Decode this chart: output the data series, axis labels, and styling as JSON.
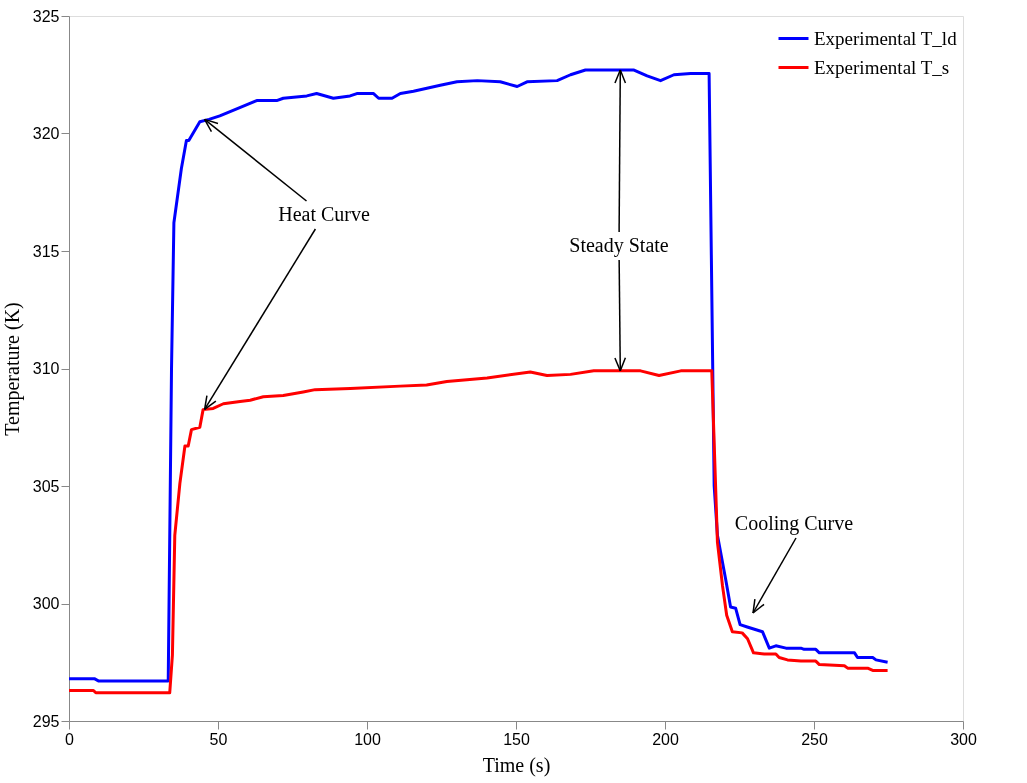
{
  "chart_data": {
    "type": "line",
    "xlabel": "Time (s)",
    "ylabel": "Temperature (K)",
    "xlim": [
      0,
      300
    ],
    "ylim": [
      295,
      325
    ],
    "xticks": [
      0,
      50,
      100,
      150,
      200,
      250,
      300
    ],
    "yticks": [
      295,
      300,
      305,
      310,
      315,
      320,
      325
    ],
    "grid": false,
    "legend": "top right",
    "marker": "none",
    "line_style": "solid",
    "series": [
      {
        "name": "Experimental T_ld",
        "color": "#0000ff",
        "x": [
          0,
          8.5,
          10,
          33.3,
          34.4,
          35.2,
          37.7,
          39.4,
          40.2,
          43.9,
          47,
          50.6,
          57.3,
          63,
          69.7,
          71.9,
          79.8,
          83.1,
          88.7,
          94.3,
          96.6,
          102.2,
          103.9,
          108.4,
          111.2,
          115.6,
          124.6,
          130.2,
          137,
          144.7,
          150.4,
          153.7,
          163.8,
          168.3,
          173.3,
          189.6,
          194,
          198.5,
          203,
          208.6,
          214.8,
          216.5,
          217.6,
          220.4,
          222,
          223.7,
          225.2,
          227.6,
          232.7,
          235,
          237.2,
          240.6,
          245.6,
          246.7,
          250.6,
          251.8,
          255.2,
          263.6,
          264.6,
          269.7,
          270.8,
          274.7
        ],
        "values": [
          296.8,
          296.8,
          296.7,
          296.7,
          310,
          316.2,
          318.5,
          319.7,
          319.7,
          320.5,
          320.6,
          320.75,
          321.1,
          321.4,
          321.4,
          321.5,
          321.6,
          321.7,
          321.5,
          321.6,
          321.7,
          321.7,
          321.5,
          321.5,
          321.7,
          321.8,
          322.05,
          322.2,
          322.25,
          322.2,
          322.0,
          322.2,
          322.25,
          322.5,
          322.7,
          322.7,
          322.45,
          322.25,
          322.5,
          322.55,
          322.55,
          305.0,
          302.9,
          301.0,
          299.85,
          299.8,
          299.1,
          299.0,
          298.8,
          298.1,
          298.2,
          298.1,
          298.1,
          298.05,
          298.05,
          297.9,
          297.9,
          297.9,
          297.7,
          297.7,
          297.6,
          297.5
        ]
      },
      {
        "name": "Experimental T_s",
        "color": "#ff0000",
        "x": [
          0,
          8.2,
          9,
          33.8,
          34.7,
          35.5,
          37.2,
          38.9,
          40,
          41.1,
          43.9,
          45,
          48.4,
          51.8,
          57.4,
          60.8,
          65.2,
          71.9,
          78.6,
          82.6,
          94.4,
          111.1,
          120,
          126.8,
          140.3,
          154.8,
          160.4,
          168.3,
          176.1,
          191.8,
          198,
          205.3,
          215.7,
          217.6,
          219.3,
          220.7,
          222.6,
          225.9,
          227.7,
          229.7,
          233.3,
          237.2,
          238.3,
          241.1,
          245.6,
          250.6,
          251.8,
          260.2,
          261.3,
          268,
          269.7,
          274.7
        ],
        "values": [
          296.3,
          296.3,
          296.2,
          296.2,
          297.8,
          302.9,
          305.1,
          306.7,
          306.7,
          307.4,
          307.5,
          308.25,
          308.3,
          308.5,
          308.6,
          308.65,
          308.8,
          308.85,
          309.0,
          309.1,
          309.15,
          309.25,
          309.3,
          309.45,
          309.6,
          309.85,
          309.7,
          309.75,
          309.9,
          309.9,
          309.7,
          309.9,
          309.9,
          302.6,
          300.75,
          299.5,
          298.8,
          298.75,
          298.5,
          297.9,
          297.85,
          297.85,
          297.7,
          297.6,
          297.55,
          297.55,
          297.4,
          297.35,
          297.25,
          297.25,
          297.15,
          297.15
        ]
      }
    ],
    "annotations": [
      {
        "text": "Heat Curve",
        "x": 45.5,
        "y": 320.6
      },
      {
        "text": "Steady State",
        "x": 185,
        "y": 322.7
      },
      "Cooling Curve"
    ]
  }
}
